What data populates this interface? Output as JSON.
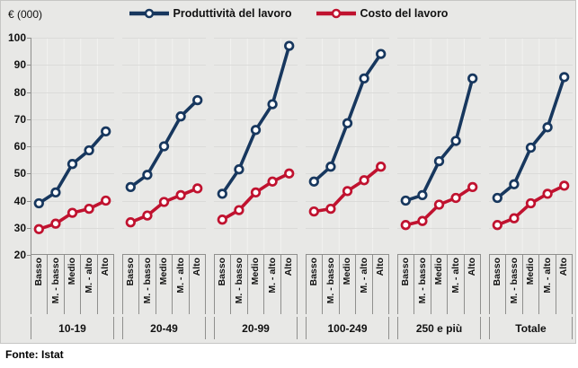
{
  "chart_data": {
    "type": "line",
    "unit_label": "€ (000)",
    "source": "Fonte: Istat",
    "ylim": [
      20,
      100
    ],
    "yticks": [
      100,
      90,
      80,
      70,
      60,
      50,
      40,
      30,
      20
    ],
    "grid": true,
    "legend_position": "top",
    "categories": [
      "Basso",
      "M. - basso",
      "Medio",
      "M. - alto",
      "Alto"
    ],
    "series": [
      {
        "name": "Produttività del lavoro",
        "key": "productivity",
        "color": "#17375E"
      },
      {
        "name": "Costo del lavoro",
        "key": "cost",
        "color": "#C0122F"
      }
    ],
    "groups": [
      {
        "label": "10-19",
        "productivity": [
          39,
          43,
          53.5,
          58.5,
          65.5
        ],
        "cost": [
          29.5,
          31.5,
          35.5,
          37,
          40
        ]
      },
      {
        "label": "20-49",
        "productivity": [
          45,
          49.5,
          60,
          71,
          77
        ],
        "cost": [
          32,
          34.5,
          39.5,
          42,
          44.5
        ]
      },
      {
        "label": "20-99",
        "productivity": [
          42.5,
          51.5,
          66,
          75.5,
          97
        ],
        "cost": [
          33,
          36.5,
          43,
          47,
          50
        ]
      },
      {
        "label": "100-249",
        "productivity": [
          47,
          52.5,
          68.5,
          85,
          94
        ],
        "cost": [
          36,
          37,
          43.5,
          47.5,
          52.5
        ]
      },
      {
        "label": "250 e più",
        "productivity": [
          40,
          42,
          54.5,
          62,
          85
        ],
        "cost": [
          31,
          32.5,
          38.5,
          41,
          45
        ]
      },
      {
        "label": "Totale",
        "productivity": [
          41,
          46,
          59.5,
          67,
          85.5
        ],
        "cost": [
          31,
          33.5,
          39,
          42.5,
          45.5
        ]
      }
    ]
  },
  "colors": {
    "background": "#E8E8E6",
    "axis": "#8F8F8D",
    "grid_horizontal": "#DBDBD9",
    "grid_vertical": "#F2F2F0",
    "marker_fill": "#FFFFFF"
  }
}
